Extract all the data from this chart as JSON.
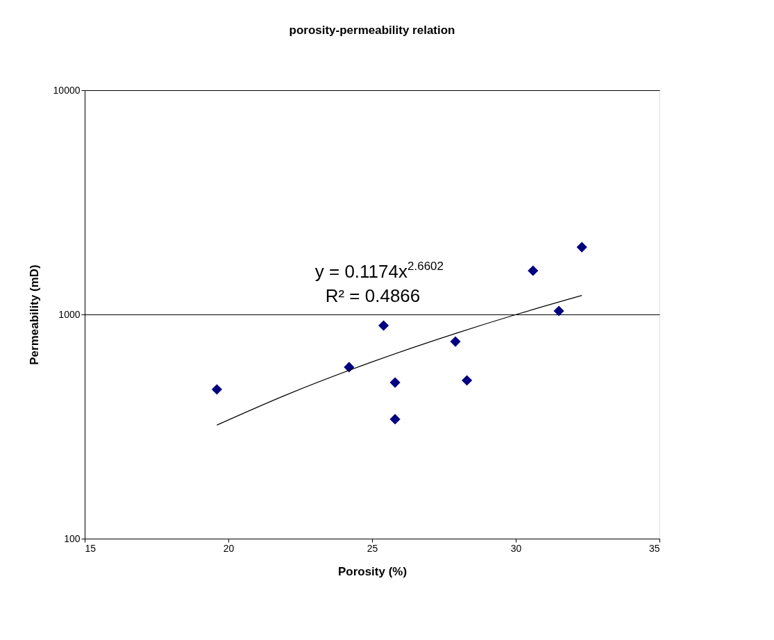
{
  "chart_data": {
    "type": "scatter",
    "title": "porosity-permeability  relation",
    "xlabel": "Porosity  (%)",
    "ylabel": "Permeability  (mD)",
    "series": [
      {
        "color": "#000080",
        "marker": "diamond",
        "x": [
          19.6,
          24.2,
          25.4,
          25.8,
          25.8,
          27.9,
          28.3,
          30.6,
          31.5,
          32.3
        ],
        "values": [
          463,
          582,
          892,
          497,
          341,
          757,
          508,
          1567,
          1036,
          1995
        ]
      },
      {
        "type": "line",
        "color": "#000000",
        "marker": "none",
        "x": [
          19.6,
          22,
          25,
          28,
          30,
          32.3
        ],
        "values": [
          321,
          437,
          614,
          830,
          998,
          1215
        ]
      }
    ],
    "xlim": [
      15,
      35
    ],
    "xticks": [
      15,
      20,
      25,
      30,
      35
    ],
    "ylim": [
      100,
      10000
    ],
    "yticks": [
      100,
      1000,
      10000
    ],
    "log": "y",
    "grid": "y",
    "annotations": [
      "y = 0.1174x$^{2.6602}$",
      "R² = 0.4866"
    ]
  }
}
